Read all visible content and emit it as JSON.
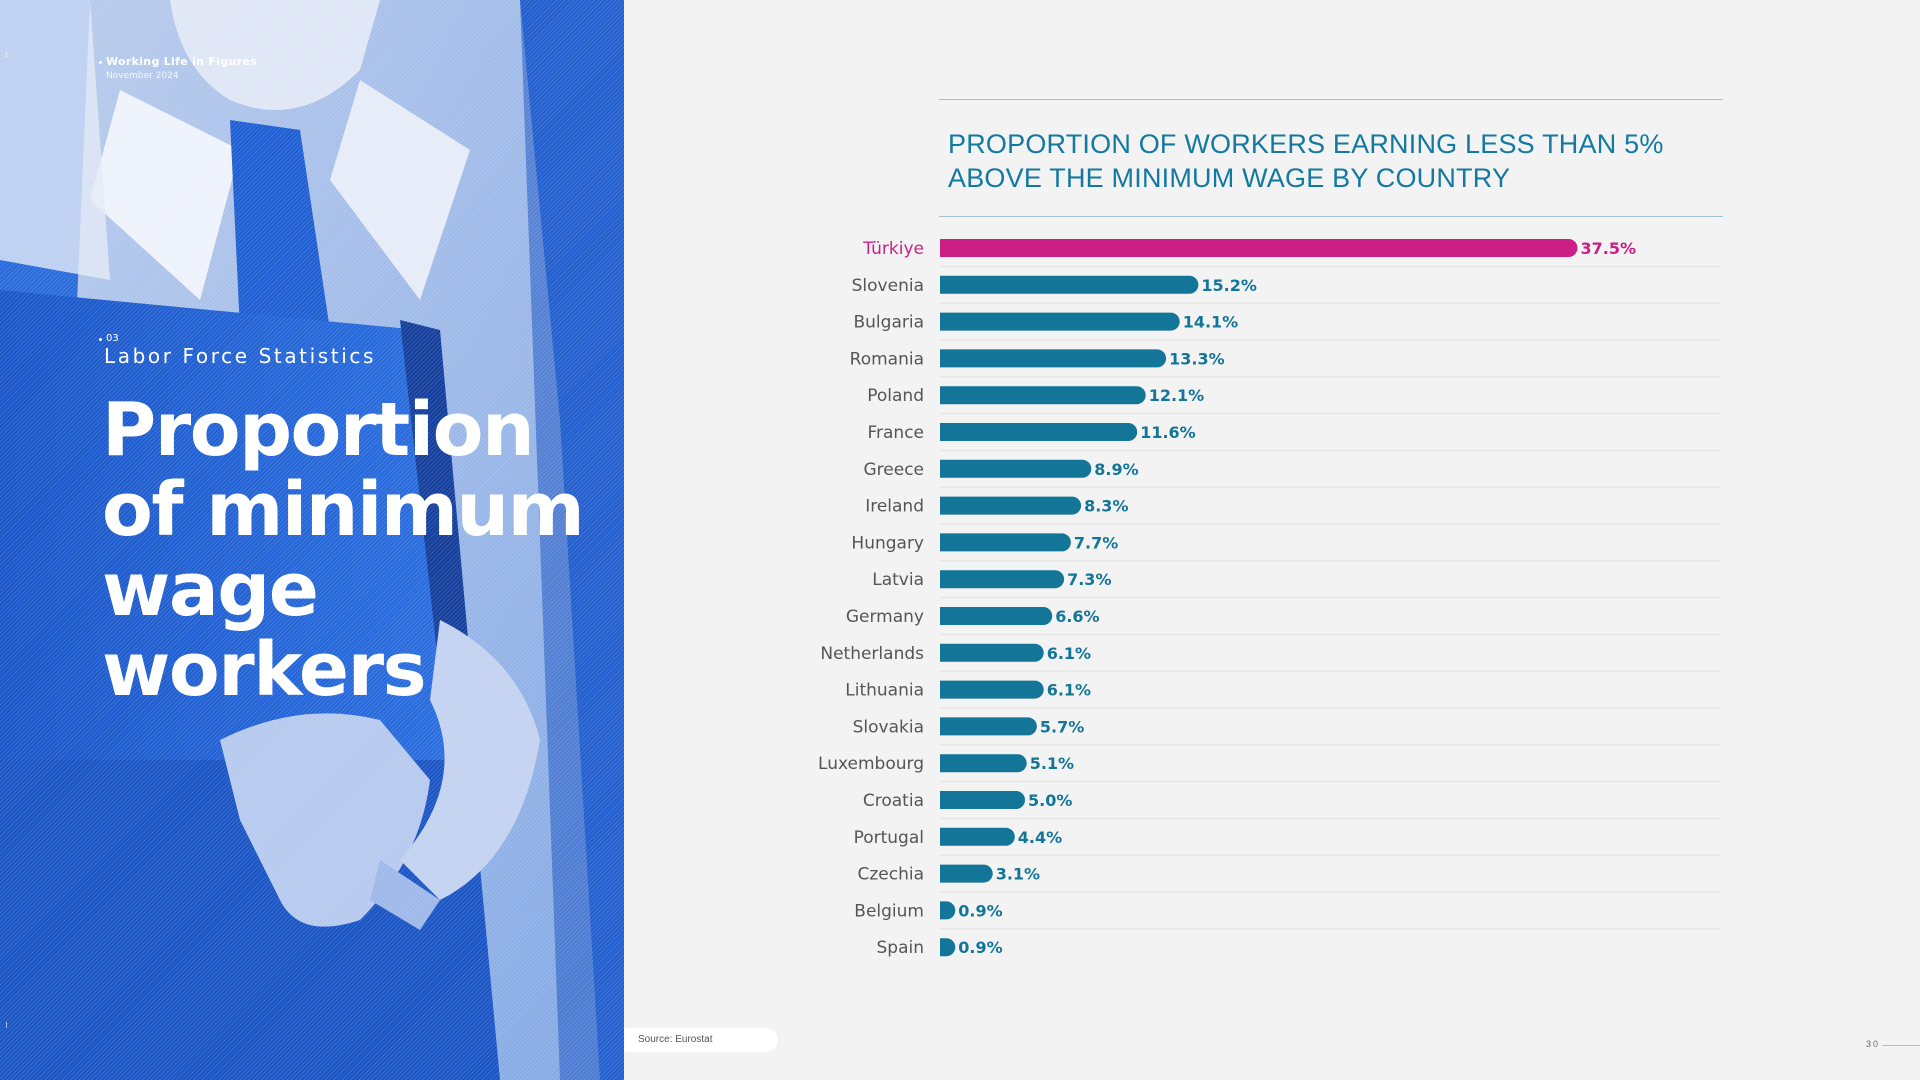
{
  "header": {
    "brand": "Working Life in Figures",
    "date": "November 2024"
  },
  "section": {
    "number": "03",
    "title": "Labor Force Statistics"
  },
  "headline": {
    "lines": [
      "Proportion",
      "of minimum",
      "wage",
      "workers"
    ]
  },
  "source": "Source: Eurostat",
  "page_number": "30",
  "colors": {
    "hero": "#1e63d8",
    "bar": "#137597",
    "highlight": "#cc1f86"
  },
  "chart_data": {
    "type": "bar",
    "orientation": "horizontal",
    "title": "PROPORTION OF WORKERS EARNING LESS THAN 5% ABOVE THE MINIMUM WAGE BY COUNTRY",
    "categories": [
      "Türkiye",
      "Slovenia",
      "Bulgaria",
      "Romania",
      "Poland",
      "France",
      "Greece",
      "Ireland",
      "Hungary",
      "Latvia",
      "Germany",
      "Netherlands",
      "Lithuania",
      "Slovakia",
      "Luxembourg",
      "Croatia",
      "Portugal",
      "Czechia",
      "Belgium",
      "Spain"
    ],
    "values": [
      37.5,
      15.2,
      14.1,
      13.3,
      12.1,
      11.6,
      8.9,
      8.3,
      7.7,
      7.3,
      6.6,
      6.1,
      6.1,
      5.7,
      5.1,
      5.0,
      4.4,
      3.1,
      0.9,
      0.9
    ],
    "labels": [
      "37.5%",
      "15.2%",
      "14.1%",
      "13.3%",
      "12.1%",
      "11.6%",
      "8.9%",
      "8.3%",
      "7.7%",
      "7.3%",
      "6.6%",
      "6.1%",
      "6.1%",
      "5.7%",
      "5.1%",
      "5.0%",
      "4.4%",
      "3.1%",
      "0.9%",
      "0.9%"
    ],
    "highlight": "Türkiye",
    "unit": "%",
    "xlim": [
      0,
      40
    ],
    "grid": false,
    "legend": "none"
  }
}
